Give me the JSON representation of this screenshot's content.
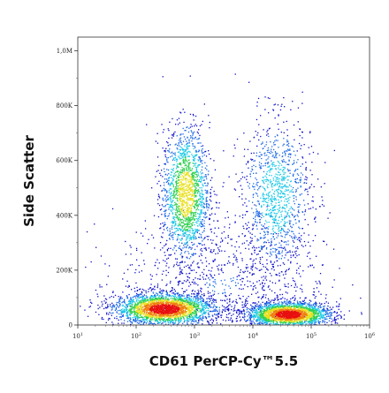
{
  "chart_data": {
    "type": "scatter",
    "subtype": "flow-cytometry-density-dot-plot",
    "title": "",
    "xlabel": "CD61 PerCP-Cy™5.5",
    "ylabel": "Side Scatter",
    "x_scale": "log",
    "y_scale": "linear",
    "xlim": [
      10,
      1000000
    ],
    "ylim": [
      0,
      1050000
    ],
    "x_ticks": [
      {
        "value": 10,
        "base": "10",
        "exp": "1"
      },
      {
        "value": 100,
        "base": "10",
        "exp": "2"
      },
      {
        "value": 1000,
        "base": "10",
        "exp": "3"
      },
      {
        "value": 10000,
        "base": "10",
        "exp": "4"
      },
      {
        "value": 100000,
        "base": "10",
        "exp": "5"
      },
      {
        "value": 1000000,
        "base": "10",
        "exp": "6"
      }
    ],
    "y_ticks": [
      {
        "value": 0,
        "label": "0"
      },
      {
        "value": 200000,
        "label": "200K"
      },
      {
        "value": 400000,
        "label": "400K"
      },
      {
        "value": 600000,
        "label": "600K"
      },
      {
        "value": 800000,
        "label": "800K"
      },
      {
        "value": 1000000,
        "label": "1,0M"
      }
    ],
    "grid": false,
    "colormap": [
      "#1010c8",
      "#1e6ae6",
      "#18c8e6",
      "#30d050",
      "#e8e020",
      "#f08010",
      "#e81010"
    ],
    "populations": [
      {
        "x_center": 300,
        "y_center": 60000,
        "x_spread_log": 0.42,
        "y_spread": 28000,
        "count": 2600,
        "peak_density": 1.0
      },
      {
        "x_center": 700,
        "y_center": 480000,
        "x_spread_log": 0.2,
        "y_spread": 120000,
        "count": 1700,
        "peak_density": 0.62
      },
      {
        "x_center": 40000,
        "y_center": 40000,
        "x_spread_log": 0.35,
        "y_spread": 22000,
        "count": 2400,
        "peak_density": 1.0
      },
      {
        "x_center": 25000,
        "y_center": 470000,
        "x_spread_log": 0.3,
        "y_spread": 140000,
        "count": 1100,
        "peak_density": 0.3
      },
      {
        "x_center": 3000,
        "y_center": 150000,
        "x_spread_log": 0.9,
        "y_spread": 120000,
        "count": 900,
        "peak_density": 0.08
      }
    ]
  }
}
